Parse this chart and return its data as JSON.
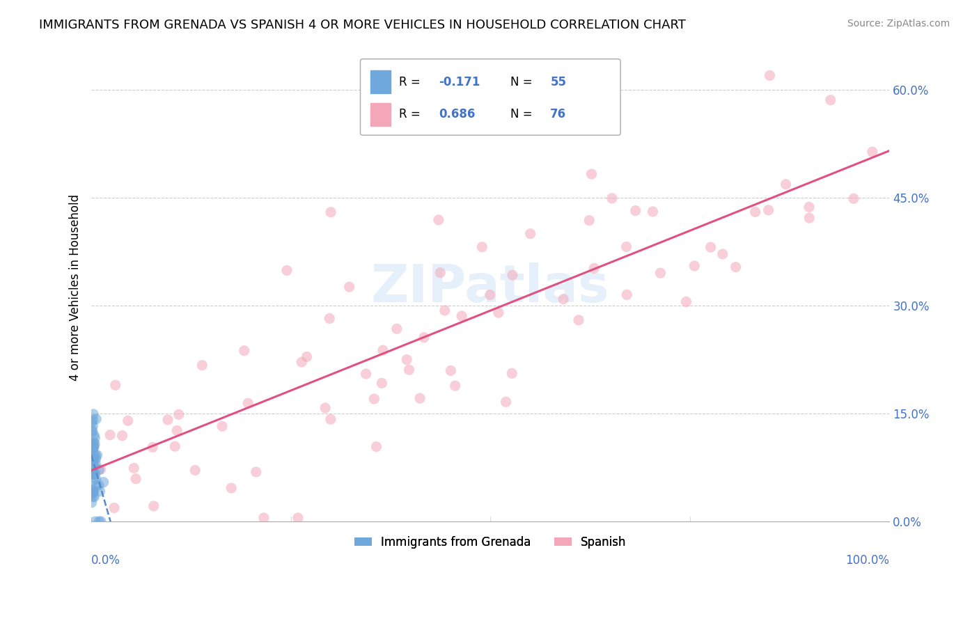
{
  "title": "IMMIGRANTS FROM GRENADA VS SPANISH 4 OR MORE VEHICLES IN HOUSEHOLD CORRELATION CHART",
  "source": "Source: ZipAtlas.com",
  "ylabel": "4 or more Vehicles in Household",
  "ytick_values": [
    0.0,
    15.0,
    30.0,
    45.0,
    60.0
  ],
  "series1_name": "Immigrants from Grenada",
  "series1_color": "#6fa8dc",
  "series1_R": -0.171,
  "series1_N": 55,
  "series2_name": "Spanish",
  "series2_color": "#f4a7b9",
  "series2_R": 0.686,
  "series2_N": 76,
  "watermark": "ZIPatlas",
  "background_color": "#ffffff",
  "tick_color": "#4472c4",
  "legend_text_color": "#4472c4",
  "title_fontsize": 13,
  "axis_fontsize": 12,
  "dot_size": 120,
  "dot_alpha": 0.55,
  "series2_trend_color": "#e05080",
  "series1_trend_color": "#5588cc",
  "xmin": 0,
  "xmax": 100,
  "ymin": 0,
  "ymax": 65
}
